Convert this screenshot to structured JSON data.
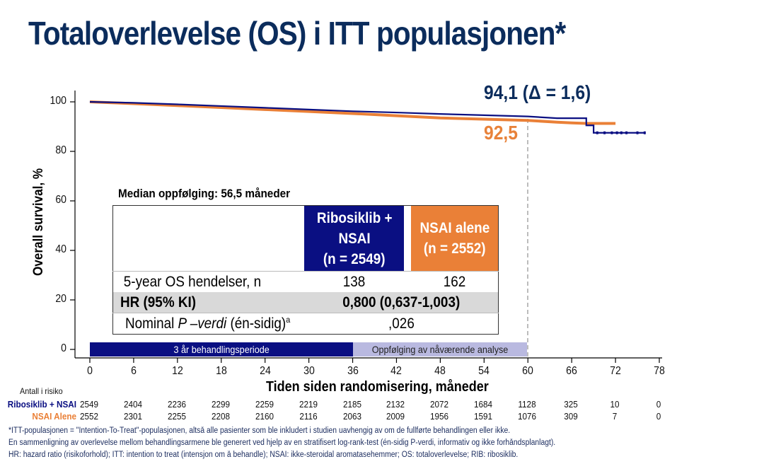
{
  "title": "Totaloverlevelse (OS) i ITT populasjonen*",
  "annotations": {
    "blue_value": "94,1 (Δ = 1,6)",
    "orange_value": "92,5"
  },
  "colors": {
    "title": "#0b2c5c",
    "ribociclib": "#0a0f82",
    "nsai": "#ea8037",
    "followup_band": "#b9b9e0",
    "hr_row": "#d9d9d9"
  },
  "axes": {
    "ylabel": "Overall survival, %",
    "xlabel": "Tiden siden randomisering, måneder",
    "yticks": [
      "100",
      "80",
      "60",
      "40",
      "20",
      "0"
    ],
    "xticks": [
      "0",
      "6",
      "12",
      "18",
      "24",
      "30",
      "36",
      "42",
      "48",
      "54",
      "60",
      "66",
      "72",
      "78"
    ]
  },
  "bands": {
    "treatment": "3 år behandlingsperiode",
    "followup": "Oppfølging av nåværende analyse"
  },
  "stats_table": {
    "median_followup": "Median oppfølging: 56,5 måneder",
    "col1_header": [
      "Ribosiklib +",
      "NSAI",
      "(n = 2549)"
    ],
    "col2_header": [
      "NSAI alene",
      "(n = 2552)"
    ],
    "rows": [
      {
        "label": "5-year OS hendelser, n",
        "col1": "138",
        "col2": "162"
      },
      {
        "label": "HR (95% KI)",
        "combined": "0,800 (0,637-1,003)"
      },
      {
        "label_prefix": "Nominal ",
        "label_italic": "P –verdi",
        "label_suffix": " (én-sidig)",
        "label_sup": "a",
        "combined": ",026"
      }
    ]
  },
  "risk_table": {
    "title": "Antall i risiko",
    "ribociclib_label": "Ribosiklib + NSAI",
    "nsai_label": "NSAI Alene",
    "ribociclib": [
      "2549",
      "2404",
      "2236",
      "2299",
      "2259",
      "2219",
      "2185",
      "2132",
      "2072",
      "1684",
      "1128",
      "325",
      "10",
      "0"
    ],
    "nsai": [
      "2552",
      "2301",
      "2255",
      "2208",
      "2160",
      "2116",
      "2063",
      "2009",
      "1956",
      "1591",
      "1076",
      "309",
      "7",
      "0"
    ]
  },
  "footnotes": [
    "*ITT-populasjonen = \"Intention-To-Treat\"-populasjonen, altså alle pasienter som ble inkludert i studien uavhengig av om de fullførte behandlingen eller ikke.",
    "En sammenligning av overlevelse mellom behandlingsarmene ble generert ved hjelp av en stratifisert log-rank-test (én-sidig P-verdi, informativ og ikke forhåndsplanlagt).",
    "HR: hazard ratio (risikoforhold); ITT: intention to treat (intensjon om å behandle); NSAI: ikke-steroidal aromatasehemmer; OS: totaloverlevelse; RIB: ribosiklib."
  ],
  "chart_data": {
    "type": "line",
    "title": "Totaloverlevelse (OS) i ITT populasjonen*",
    "xlabel": "Tiden siden randomisering, måneder",
    "ylabel": "Overall survival, %",
    "xlim": [
      0,
      78
    ],
    "ylim": [
      0,
      100
    ],
    "xticks": [
      0,
      6,
      12,
      18,
      24,
      30,
      36,
      42,
      48,
      54,
      60,
      66,
      72,
      78
    ],
    "yticks": [
      0,
      20,
      40,
      60,
      80,
      100
    ],
    "grid": false,
    "series": [
      {
        "name": "Ribosiklib + NSAI",
        "color": "#0a0f82",
        "x": [
          0,
          6,
          12,
          18,
          24,
          30,
          36,
          42,
          48,
          54,
          60,
          64,
          67,
          68,
          69,
          70,
          76
        ],
        "y": [
          100,
          99.6,
          99.0,
          98.3,
          97.6,
          96.9,
          96.2,
          95.7,
          95.1,
          94.6,
          94.1,
          93.4,
          93.4,
          90.5,
          87.5,
          87.5,
          87.5
        ]
      },
      {
        "name": "NSAI Alene",
        "color": "#ea8037",
        "x": [
          0,
          6,
          12,
          18,
          24,
          30,
          36,
          42,
          48,
          54,
          60,
          64,
          66,
          68,
          72
        ],
        "y": [
          100,
          99.3,
          98.5,
          97.7,
          96.9,
          96.1,
          95.3,
          94.4,
          93.5,
          93.0,
          92.5,
          91.8,
          91.5,
          91.3,
          91.3
        ]
      }
    ],
    "annotations": [
      {
        "text": "94,1 (Δ = 1,6)",
        "x": 60,
        "series": "Ribosiklib + NSAI"
      },
      {
        "text": "92,5",
        "x": 60,
        "series": "NSAI Alene"
      },
      {
        "text": "dashed reference line",
        "x": 60
      }
    ],
    "bands": [
      {
        "label": "3 år behandlingsperiode",
        "x": [
          0,
          36
        ]
      },
      {
        "label": "Oppfølging av nåværende analyse",
        "x": [
          36,
          60
        ]
      }
    ],
    "legend": "none (series labeled in risk table)"
  }
}
